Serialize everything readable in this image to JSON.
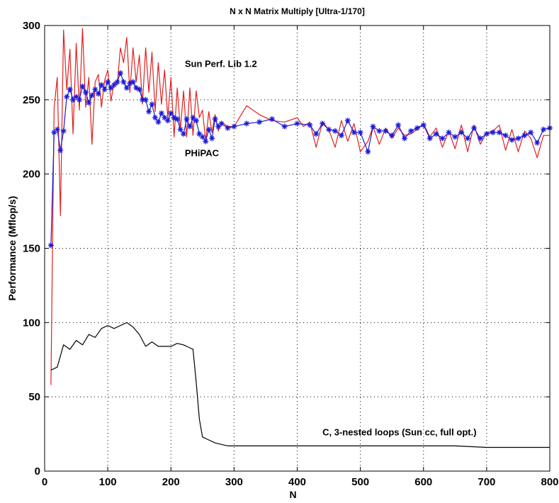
{
  "chart_data": {
    "type": "line",
    "title": "N x N Matrix Multiply [Ultra-1/170]",
    "xlabel": "N",
    "ylabel": "Performance (Mflop/s)",
    "xlim": [
      0,
      800
    ],
    "ylim": [
      0,
      300
    ],
    "xticks": [
      0,
      100,
      200,
      300,
      400,
      500,
      600,
      700,
      800
    ],
    "yticks": [
      0,
      50,
      100,
      150,
      200,
      250,
      300
    ],
    "grid": true,
    "legend": "none (inline annotations)",
    "annotations": [
      {
        "text": "Sun Perf. Lib 1.2",
        "series": "sunperf"
      },
      {
        "text": "PHiPAC",
        "series": "phipac"
      },
      {
        "text": "C, 3-nested loops (Sun cc, full opt.)",
        "series": "naive"
      }
    ],
    "series": [
      {
        "id": "sunperf",
        "name": "Sun Perf. Lib 1.2",
        "color": "#e02020",
        "marker": "none",
        "x": [
          10,
          15,
          20,
          25,
          30,
          35,
          40,
          45,
          50,
          55,
          60,
          65,
          70,
          75,
          80,
          85,
          90,
          95,
          100,
          105,
          110,
          115,
          120,
          125,
          130,
          135,
          140,
          145,
          150,
          155,
          160,
          165,
          170,
          175,
          180,
          185,
          190,
          195,
          200,
          205,
          210,
          215,
          220,
          225,
          230,
          235,
          240,
          245,
          250,
          255,
          260,
          265,
          270,
          275,
          280,
          290,
          300,
          320,
          340,
          360,
          380,
          400,
          410,
          420,
          430,
          440,
          450,
          460,
          470,
          480,
          490,
          500,
          512,
          520,
          530,
          540,
          550,
          560,
          570,
          580,
          590,
          600,
          610,
          620,
          630,
          640,
          650,
          660,
          670,
          680,
          690,
          700,
          710,
          720,
          730,
          740,
          750,
          760,
          770,
          780,
          790,
          800
        ],
        "y": [
          58,
          245,
          265,
          172,
          297,
          257,
          284,
          227,
          288,
          243,
          298,
          245,
          265,
          220,
          262,
          267,
          245,
          263,
          270,
          249,
          262,
          260,
          285,
          275,
          292,
          255,
          285,
          262,
          280,
          247,
          285,
          255,
          282,
          242,
          275,
          247,
          270,
          238,
          265,
          225,
          258,
          230,
          256,
          225,
          258,
          226,
          256,
          238,
          243,
          222,
          242,
          228,
          240,
          229,
          235,
          232,
          232,
          246,
          240,
          236,
          235,
          238,
          232,
          235,
          218,
          235,
          230,
          218,
          236,
          222,
          234,
          215,
          222,
          232,
          220,
          231,
          224,
          231,
          226,
          227,
          230,
          234,
          225,
          231,
          218,
          229,
          217,
          233,
          215,
          233,
          220,
          228,
          229,
          233,
          216,
          230,
          215,
          229,
          224,
          211,
          226,
          226
        ]
      },
      {
        "id": "phipac",
        "name": "PHiPAC",
        "color": "#1a1ad8",
        "marker": "*",
        "x": [
          10,
          15,
          20,
          25,
          30,
          35,
          40,
          45,
          50,
          55,
          60,
          65,
          70,
          75,
          80,
          85,
          90,
          95,
          100,
          105,
          110,
          115,
          120,
          125,
          130,
          135,
          140,
          145,
          150,
          155,
          160,
          165,
          170,
          175,
          180,
          185,
          190,
          195,
          200,
          205,
          210,
          215,
          220,
          225,
          230,
          235,
          240,
          245,
          250,
          255,
          260,
          265,
          270,
          275,
          280,
          290,
          300,
          320,
          340,
          360,
          380,
          400,
          420,
          430,
          440,
          450,
          460,
          470,
          480,
          490,
          500,
          512,
          520,
          530,
          540,
          550,
          560,
          570,
          580,
          590,
          600,
          610,
          620,
          630,
          640,
          650,
          660,
          670,
          680,
          690,
          700,
          710,
          720,
          730,
          740,
          750,
          760,
          770,
          780,
          790,
          800
        ],
        "y": [
          152,
          228,
          230,
          216,
          229,
          252,
          257,
          250,
          252,
          250,
          259,
          255,
          248,
          253,
          257,
          254,
          260,
          257,
          262,
          258,
          260,
          262,
          268,
          262,
          258,
          261,
          262,
          258,
          257,
          250,
          250,
          242,
          247,
          238,
          235,
          241,
          238,
          236,
          241,
          238,
          237,
          230,
          227,
          237,
          232,
          238,
          236,
          227,
          225,
          222,
          230,
          224,
          237,
          232,
          234,
          231,
          232,
          234,
          235,
          237,
          232,
          234,
          233,
          227,
          234,
          230,
          229,
          226,
          236,
          228,
          228,
          215,
          232,
          229,
          229,
          226,
          233,
          224,
          229,
          231,
          233,
          224,
          227,
          224,
          228,
          225,
          228,
          224,
          231,
          224,
          227,
          228,
          228,
          226,
          223,
          224,
          226,
          228,
          221,
          230,
          231
        ]
      },
      {
        "id": "naive",
        "name": "C, 3-nested loops (Sun cc, full opt.)",
        "color": "#000000",
        "marker": "none",
        "x": [
          10,
          20,
          30,
          40,
          50,
          60,
          70,
          80,
          90,
          100,
          110,
          120,
          130,
          140,
          150,
          160,
          170,
          180,
          190,
          200,
          210,
          220,
          230,
          235,
          240,
          245,
          250,
          260,
          270,
          280,
          290,
          300,
          350,
          400,
          450,
          500,
          550,
          600,
          650,
          700,
          750,
          800
        ],
        "y": [
          68,
          70,
          85,
          82,
          88,
          85,
          92,
          90,
          96,
          98,
          96,
          98,
          100,
          97,
          92,
          84,
          87,
          84,
          84,
          84,
          86,
          85,
          83,
          82,
          60,
          35,
          23,
          21,
          19,
          18,
          17,
          17,
          17,
          17,
          17,
          17,
          17,
          17,
          17,
          16,
          16,
          16
        ]
      }
    ]
  }
}
